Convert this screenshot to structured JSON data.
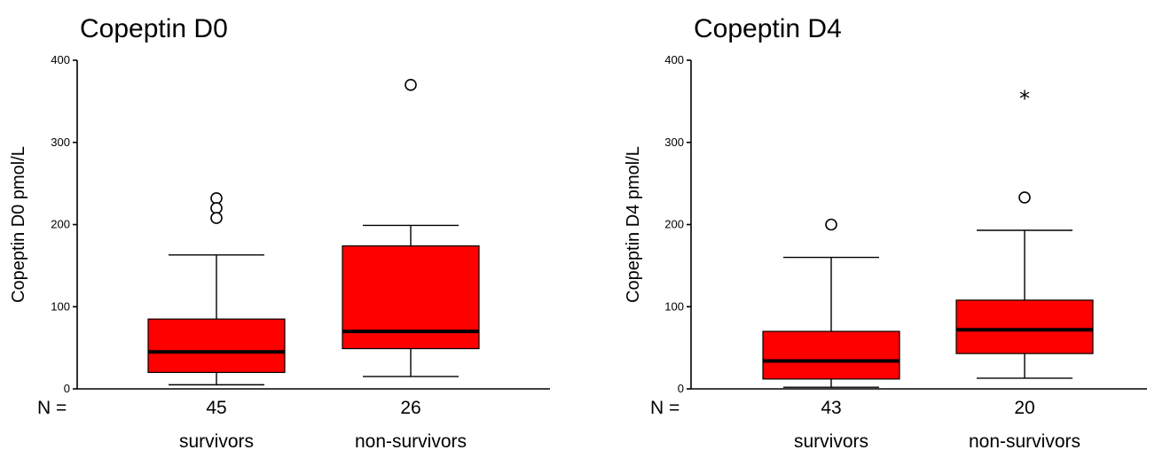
{
  "chart_data": [
    {
      "type": "box",
      "title": "Copeptin D0",
      "ylabel": "Copeptin D0 pmol/L",
      "ylim": [
        0,
        400
      ],
      "yticks": [
        0,
        100,
        200,
        300,
        400
      ],
      "n_label": "N =",
      "box_color": "#ff0000",
      "categories": [
        "survivors",
        "non-survivors"
      ],
      "n": [
        "45",
        "26"
      ],
      "boxes": [
        {
          "whisker_low": 5,
          "q1": 20,
          "median": 45,
          "q3": 85,
          "whisker_high": 163,
          "outliers": [
            {
              "value": 232,
              "marker": "circle"
            },
            {
              "value": 220,
              "marker": "circle"
            },
            {
              "value": 208,
              "marker": "circle"
            }
          ]
        },
        {
          "whisker_low": 15,
          "q1": 49,
          "median": 70,
          "q3": 174,
          "whisker_high": 199,
          "outliers": [
            {
              "value": 370,
              "marker": "circle"
            }
          ]
        }
      ]
    },
    {
      "type": "box",
      "title": "Copeptin D4",
      "ylabel": "Copeptin D4  pmol/L",
      "ylim": [
        0,
        400
      ],
      "yticks": [
        0,
        100,
        200,
        300,
        400
      ],
      "n_label": "N =",
      "box_color": "#ff0000",
      "categories": [
        "survivors",
        "non-survivors"
      ],
      "n": [
        "43",
        "20"
      ],
      "boxes": [
        {
          "whisker_low": 2,
          "q1": 12,
          "median": 34,
          "q3": 70,
          "whisker_high": 160,
          "outliers": [
            {
              "value": 200,
              "marker": "circle"
            }
          ]
        },
        {
          "whisker_low": 13,
          "q1": 43,
          "median": 72,
          "q3": 108,
          "whisker_high": 193,
          "outliers": [
            {
              "value": 233,
              "marker": "circle"
            },
            {
              "value": 354,
              "marker": "star",
              "symbol": "*"
            }
          ]
        }
      ]
    }
  ]
}
